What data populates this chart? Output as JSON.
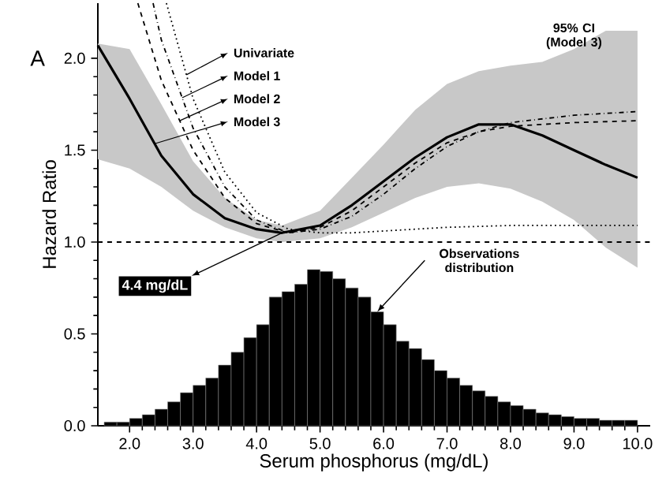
{
  "chart_data": {
    "type": "line",
    "xlabel": "Serum phosphorus (mg/dL)",
    "ylabel": "Hazard Ratio",
    "xlim": [
      1.5,
      10.2
    ],
    "ylim": [
      0,
      2.3
    ],
    "xticks": [
      {
        "value": 2,
        "label": "2.0"
      },
      {
        "value": 3,
        "label": "3.0"
      },
      {
        "value": 4,
        "label": "4.0"
      },
      {
        "value": 5,
        "label": "5.0"
      },
      {
        "value": 6,
        "label": "6.0"
      },
      {
        "value": 7,
        "label": "7.0"
      },
      {
        "value": 8,
        "label": "8.0"
      },
      {
        "value": 9,
        "label": "9.0"
      },
      {
        "value": 10,
        "label": "10.0"
      }
    ],
    "yticks": [
      {
        "value": 0,
        "label": "0.0"
      },
      {
        "value": 0.5,
        "label": "0.5"
      },
      {
        "value": 1,
        "label": "1.0"
      },
      {
        "value": 1.5,
        "label": "1.5"
      },
      {
        "value": 2,
        "label": "2.0"
      }
    ],
    "series": [
      {
        "name": "Univariate",
        "color": "#000000",
        "line_style": "dotted",
        "x": [
          2.58,
          3.0,
          3.5,
          4.0,
          4.5,
          5.0,
          5.5,
          6.0,
          7.0,
          8.0,
          9.0,
          10.0
        ],
        "values": [
          2.3,
          1.78,
          1.38,
          1.16,
          1.07,
          1.05,
          1.05,
          1.06,
          1.08,
          1.09,
          1.09,
          1.09
        ]
      },
      {
        "name": "Model 1",
        "color": "#000000",
        "line_style": "dashdot",
        "x": [
          2.37,
          2.5,
          3.0,
          3.5,
          4.0,
          4.5,
          5.0,
          5.5,
          6.0,
          6.5,
          7.0,
          7.5,
          8.0,
          9.0,
          10.0
        ],
        "values": [
          2.3,
          2.1,
          1.62,
          1.3,
          1.12,
          1.05,
          1.07,
          1.14,
          1.26,
          1.4,
          1.52,
          1.6,
          1.65,
          1.69,
          1.71
        ]
      },
      {
        "name": "Model 2",
        "color": "#000000",
        "line_style": "dashed",
        "x": [
          2.13,
          2.5,
          3.0,
          3.5,
          4.0,
          4.5,
          5.0,
          5.5,
          6.0,
          6.5,
          7.0,
          7.5,
          8.0,
          9.0,
          10.0
        ],
        "values": [
          2.3,
          1.88,
          1.5,
          1.24,
          1.1,
          1.05,
          1.08,
          1.17,
          1.3,
          1.43,
          1.54,
          1.6,
          1.63,
          1.65,
          1.66
        ]
      },
      {
        "name": "Model 3",
        "color": "#000000",
        "line_style": "solid",
        "x": [
          1.5,
          2.0,
          2.5,
          3.0,
          3.5,
          4.0,
          4.4,
          5.0,
          5.5,
          6.0,
          6.5,
          7.0,
          7.5,
          8.0,
          8.5,
          9.0,
          9.5,
          10.0
        ],
        "values": [
          2.07,
          1.78,
          1.47,
          1.26,
          1.13,
          1.07,
          1.05,
          1.09,
          1.2,
          1.33,
          1.46,
          1.57,
          1.64,
          1.64,
          1.58,
          1.5,
          1.42,
          1.35
        ],
        "lower": [
          1.45,
          1.4,
          1.3,
          1.17,
          1.08,
          1.02,
          1.0,
          1.02,
          1.08,
          1.16,
          1.24,
          1.3,
          1.32,
          1.29,
          1.22,
          1.12,
          0.97,
          0.86
        ],
        "upper": [
          2.08,
          2.05,
          1.75,
          1.44,
          1.24,
          1.12,
          1.09,
          1.17,
          1.35,
          1.53,
          1.72,
          1.86,
          1.93,
          1.96,
          1.98,
          2.05,
          2.15,
          2.15
        ]
      },
      {
        "type": "histogram",
        "color": "#000000",
        "bins": [
          1.6,
          1.8,
          2.0,
          2.2,
          2.4,
          2.6,
          2.8,
          3.0,
          3.2,
          3.4,
          3.6,
          3.8,
          4.0,
          4.2,
          4.4,
          4.6,
          4.8,
          5.0,
          5.2,
          5.4,
          5.6,
          5.8,
          6.0,
          6.2,
          6.4,
          6.6,
          6.8,
          7.0,
          7.2,
          7.4,
          7.6,
          7.8,
          8.0,
          8.2,
          8.4,
          8.6,
          8.8,
          9.0,
          9.2,
          9.4,
          9.6,
          9.8,
          10.0
        ],
        "values": [
          0.02,
          0.02,
          0.04,
          0.06,
          0.09,
          0.13,
          0.18,
          0.22,
          0.26,
          0.33,
          0.4,
          0.48,
          0.55,
          0.7,
          0.73,
          0.77,
          0.85,
          0.84,
          0.8,
          0.75,
          0.7,
          0.62,
          0.55,
          0.46,
          0.42,
          0.36,
          0.3,
          0.26,
          0.22,
          0.19,
          0.16,
          0.13,
          0.11,
          0.09,
          0.07,
          0.06,
          0.05,
          0.04,
          0.04,
          0.03,
          0.03,
          0.03
        ]
      }
    ],
    "legend": "top left",
    "ref_lines": [
      {
        "axis": "y",
        "value": 1.0,
        "line_style": "dashed"
      }
    ],
    "annotations": [
      "A",
      {
        "text": "4.4 mg/dL",
        "x": 4.4,
        "y": 1.05
      },
      {
        "text": "Observations distribution",
        "x": 5.9,
        "y": 0.62
      },
      "95% CI (Model 3)"
    ]
  }
}
